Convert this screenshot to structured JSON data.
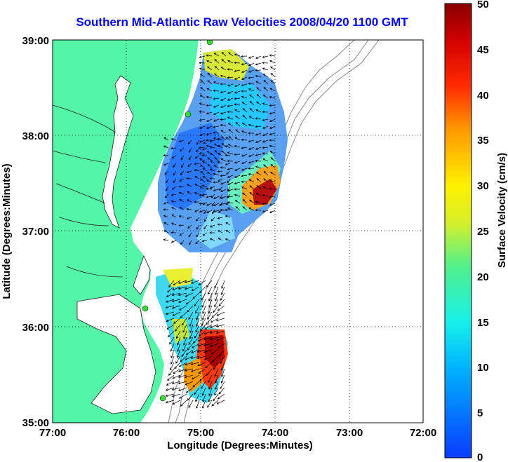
{
  "title": "Southern Mid-Atlantic Raw Velocities 2008/04/20 1100 GMT",
  "xlabel": "Longitude (Degrees:Minutes)",
  "ylabel": "Latitude (Degrees:Minutes)",
  "x_ticks": [
    "77:00",
    "76:00",
    "75:00",
    "74:00",
    "73:00",
    "72:00"
  ],
  "y_ticks": [
    "39:00",
    "38:00",
    "37:00",
    "36:00",
    "35:00"
  ],
  "colorbar": {
    "label": "Surface Velocity (cm/s)",
    "ticks": [
      "0",
      "5",
      "10",
      "15",
      "20",
      "25",
      "30",
      "35",
      "40",
      "45",
      "50"
    ],
    "range": [
      0,
      50
    ]
  },
  "colors": {
    "title": "#0000ff",
    "land": "#55f5a8",
    "station": "#33dd33",
    "bathymetry": "#888888"
  }
}
